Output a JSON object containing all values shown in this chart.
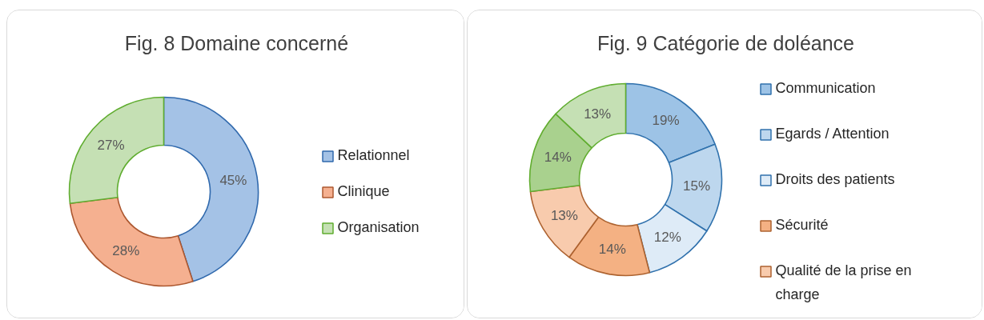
{
  "chart_data": [
    {
      "type": "donut",
      "title": "Fig. 8 Domaine concerné",
      "categories": [
        "Relationnel",
        "Clinique",
        "Organisation"
      ],
      "values": [
        45,
        28,
        27
      ],
      "colors": [
        "#a4c2e6",
        "#f5b090",
        "#c5e0b4"
      ],
      "value_labels": [
        "45%",
        "28%",
        "27%"
      ],
      "legend": "right"
    },
    {
      "type": "donut",
      "title": "Fig. 9 Catégorie de doléance",
      "categories": [
        "Communication",
        "Egards / Attention",
        "Droits des patients",
        "Sécurité",
        "Qualité de la prise en charge",
        null,
        null
      ],
      "values": [
        19,
        15,
        12,
        14,
        13,
        14,
        13
      ],
      "colors": [
        "#9dc3e6",
        "#bdd7ee",
        "#deebf7",
        "#f4b183",
        "#f8cbad",
        "#a9d18e",
        "#c5e0b4"
      ],
      "value_labels": [
        "19%",
        "15%",
        "12%",
        "14%",
        "13%",
        "14%",
        "13%"
      ],
      "legend": "right"
    }
  ]
}
